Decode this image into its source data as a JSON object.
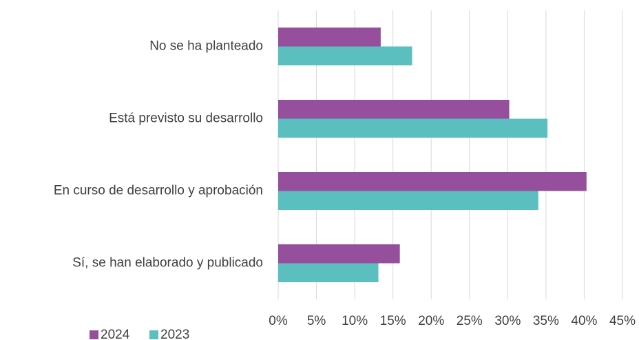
{
  "chart_data": {
    "type": "barh",
    "categories": [
      "No se ha planteado",
      "Está previsto su desarrollo",
      "En curso de desarrollo y aprobación",
      "Sí, se han elaborado y publicado"
    ],
    "series": [
      {
        "name": "2024",
        "color": "#954f9c",
        "values": [
          13.4,
          30.2,
          40.3,
          15.9
        ]
      },
      {
        "name": "2023",
        "color": "#5bbfbf",
        "values": [
          17.5,
          35.2,
          34.0,
          13.1
        ]
      }
    ],
    "xlim": [
      0,
      45
    ],
    "xticks": [
      {
        "value": 0,
        "label": "0%"
      },
      {
        "value": 5,
        "label": "5%"
      },
      {
        "value": 10,
        "label": "10%"
      },
      {
        "value": 15,
        "label": "15%"
      },
      {
        "value": 20,
        "label": "20%"
      },
      {
        "value": 25,
        "label": "25%"
      },
      {
        "value": 30,
        "label": "30%"
      },
      {
        "value": 35,
        "label": "35%"
      },
      {
        "value": 40,
        "label": "40%"
      },
      {
        "value": 45,
        "label": "45%"
      }
    ],
    "grid": true,
    "legend": "bottom-left"
  }
}
